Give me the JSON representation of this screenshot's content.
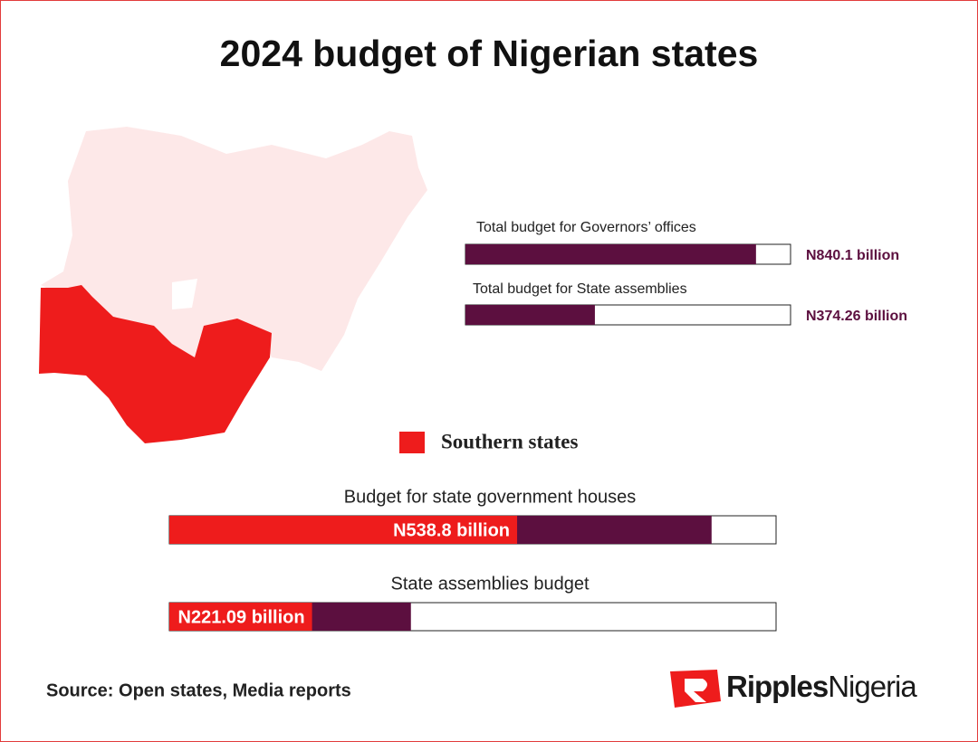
{
  "title": "2024 budget of Nigerian states",
  "chart_data": [
    {
      "type": "bar",
      "orientation": "horizontal",
      "categories": [
        "Total budget for Governors’ offices",
        "Total budget for State assemblies"
      ],
      "values": [
        840.1,
        374.26
      ],
      "value_labels": [
        "N840.1 billion",
        "N374.26 billion"
      ],
      "color": "#5c0f3f",
      "xlim": [
        0,
        940
      ]
    },
    {
      "type": "overlay-bar",
      "orientation": "horizontal",
      "categories": [
        "Budget for state government houses",
        "State assemblies budget"
      ],
      "series": [
        {
          "name": "Southern states",
          "color": "#ee1c1c",
          "values": [
            538.8,
            221.09
          ],
          "value_labels": [
            "N538.8 billion",
            "N221.09 billion"
          ]
        }
      ],
      "xlim": [
        0,
        940
      ]
    }
  ],
  "source": "Source: Open states, Media reports",
  "brand": {
    "bold": "Ripples",
    "light": "Nigeria"
  }
}
